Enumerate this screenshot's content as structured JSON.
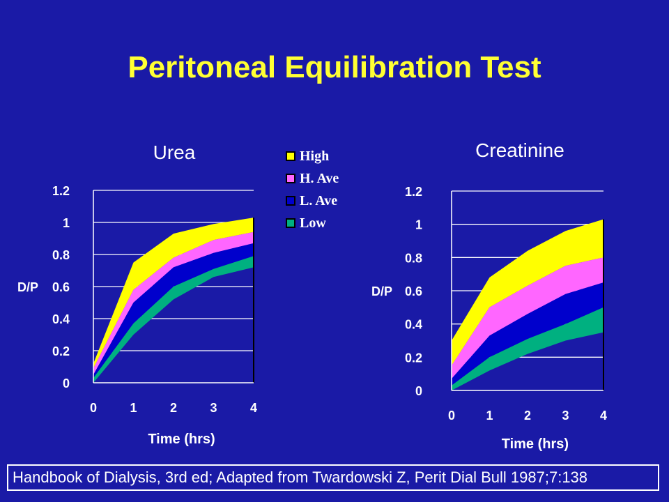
{
  "title": "Peritoneal Equilibration Test",
  "source": "Handbook of Dialysis, 3rd ed; Adapted from Twardowski Z, Perit Dial Bull 1987;7:138",
  "colors": {
    "background": "#1a1aa6",
    "title": "#ffff33",
    "axis": "#ffffff",
    "grid": "#ffffff",
    "divider": "#000000"
  },
  "legend": [
    {
      "label": "High",
      "color": "#ffff00"
    },
    {
      "label": "H. Ave",
      "color": "#ff66ff"
    },
    {
      "label": "L. Ave",
      "color": "#0000cc"
    },
    {
      "label": "Low",
      "color": "#00b080"
    }
  ],
  "chart_data": [
    {
      "type": "area",
      "title": "Urea",
      "xlabel": "Time (hrs)",
      "ylabel": "D/P",
      "x": [
        0,
        1,
        2,
        3,
        4
      ],
      "xticks": [
        "0",
        "1",
        "2",
        "3",
        "4"
      ],
      "yticks": [
        "0",
        "0.2",
        "0.4",
        "0.6",
        "0.8",
        "1",
        "1.2"
      ],
      "xlim": [
        0,
        4
      ],
      "ylim": [
        0,
        1.2
      ],
      "grid": true,
      "boundaries": [
        [
          0.12,
          0.75,
          0.93,
          0.99,
          1.03
        ],
        [
          0.09,
          0.58,
          0.78,
          0.89,
          0.94
        ],
        [
          0.05,
          0.5,
          0.72,
          0.81,
          0.87
        ],
        [
          0.03,
          0.37,
          0.6,
          0.71,
          0.79
        ],
        [
          0.0,
          0.3,
          0.52,
          0.66,
          0.72
        ]
      ]
    },
    {
      "type": "area",
      "title": "Creatinine",
      "xlabel": "Time (hrs)",
      "ylabel": "D/P",
      "x": [
        0,
        1,
        2,
        3,
        4
      ],
      "xticks": [
        "0",
        "1",
        "2",
        "3",
        "4"
      ],
      "yticks": [
        "0",
        "0.2",
        "0.4",
        "0.6",
        "0.8",
        "1",
        "1.2"
      ],
      "xlim": [
        0,
        4
      ],
      "ylim": [
        0,
        1.2
      ],
      "grid": true,
      "boundaries": [
        [
          0.3,
          0.68,
          0.84,
          0.96,
          1.03
        ],
        [
          0.15,
          0.5,
          0.63,
          0.75,
          0.8
        ],
        [
          0.07,
          0.33,
          0.46,
          0.58,
          0.65
        ],
        [
          0.03,
          0.2,
          0.31,
          0.4,
          0.5
        ],
        [
          0.0,
          0.12,
          0.22,
          0.3,
          0.35
        ]
      ]
    }
  ]
}
